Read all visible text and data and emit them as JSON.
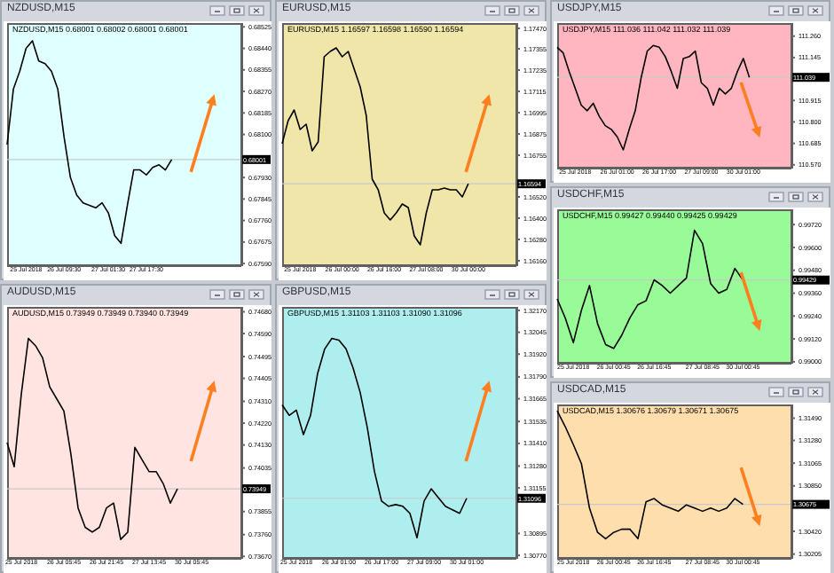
{
  "chart_data": [
    {
      "type": "line",
      "title": "NZDUSD,M15",
      "subtitle": "NZDUSD,M15 0.68001 0.68002 0.68001 0.68001",
      "categories": [
        null,
        null,
        null,
        "25 Jul 2018",
        null,
        null,
        null,
        null,
        null,
        "26 Jul 09:30",
        null,
        null,
        null,
        null,
        null,
        null,
        "27 Jul 01:30",
        null,
        null,
        null,
        null,
        null,
        "27 Jul 17:30",
        null,
        null,
        null,
        null,
        null,
        null,
        null,
        null,
        null,
        null,
        null,
        null,
        null,
        null,
        null
      ],
      "series": [
        {
          "color": "#000000",
          "values": [
            0.6806,
            0.6828,
            0.6835,
            0.6844,
            0.6847,
            0.6839,
            0.6838,
            0.6835,
            0.6828,
            0.6809,
            0.6793,
            0.6786,
            0.6783,
            0.6782,
            0.6781,
            0.6783,
            0.6779,
            0.677,
            0.6767,
            0.6782,
            0.6796,
            0.6796,
            0.6794,
            0.6797,
            0.6798,
            0.6796,
            0.68001,
            null,
            null,
            null,
            null,
            null,
            null,
            null,
            null,
            null,
            null,
            null
          ]
        }
      ],
      "ylim": [
        0.6758,
        0.6854
      ],
      "yticks": [
        0.68525,
        {
          "value": 0.6844,
          "label": "0.68440"
        },
        0.68355,
        {
          "value": 0.6827,
          "label": "0.68270"
        },
        0.68185,
        {
          "value": 0.681,
          "label": "0.68100"
        },
        {
          "value": 0.6793,
          "label": "0.67930"
        },
        0.67845,
        {
          "value": 0.6776,
          "label": "0.67760"
        },
        0.67675,
        {
          "value": 0.6759,
          "label": "0.67590"
        }
      ],
      "ref_lines": [
        {
          "axis": "y",
          "value": 0.68001,
          "label": "0.68001",
          "color": "#c8c8c8"
        }
      ]
    },
    {
      "type": "line",
      "title": "EURUSD,M15",
      "subtitle": "EURUSD,M15 1.16597 1.16598 1.16590 1.16594",
      "categories": [
        null,
        null,
        null,
        "25 Jul 2018",
        null,
        null,
        null,
        null,
        null,
        null,
        "26 Jul 00:00",
        null,
        null,
        null,
        null,
        null,
        null,
        "26 Jul 16:00",
        null,
        null,
        null,
        null,
        null,
        null,
        "27 Jul 08:00",
        null,
        null,
        null,
        null,
        null,
        null,
        "30 Jul 00:00",
        null,
        null,
        null,
        null,
        null,
        null,
        null,
        null
      ],
      "series": [
        {
          "color": "#000000",
          "values": [
            1.1682,
            1.1695,
            1.1701,
            1.169,
            1.1693,
            1.1678,
            1.1683,
            1.1731,
            1.1734,
            1.1736,
            1.1731,
            1.1734,
            1.1724,
            1.1714,
            1.1698,
            1.1662,
            1.1656,
            1.1643,
            1.1639,
            1.1643,
            1.1648,
            1.1646,
            1.163,
            1.1625,
            1.1643,
            1.1656,
            1.1656,
            1.1657,
            1.1656,
            1.1656,
            1.1652,
            1.16594,
            null,
            null,
            null,
            null,
            null,
            null,
            null,
            null
          ]
        }
      ],
      "ylim": [
        1.1613,
        1.175
      ],
      "yticks": [
        {
          "value": 1.1747,
          "label": "1.17470"
        },
        1.17355,
        1.17235,
        1.17115,
        1.16995,
        1.16875,
        1.16755,
        {
          "value": 1.1652,
          "label": "1.16520"
        },
        {
          "value": 1.164,
          "label": "1.16400"
        },
        {
          "value": 1.1628,
          "label": "1.16280"
        },
        {
          "value": 1.1616,
          "label": "1.16160"
        }
      ],
      "ref_lines": [
        {
          "axis": "y",
          "value": 1.16594,
          "label": "1.16594",
          "color": "#c8c8c8"
        }
      ]
    },
    {
      "type": "line",
      "title": "USDJPY,M15",
      "subtitle": "USDJPY,M15 111.036 111.042 111.032 111.039",
      "categories": [
        null,
        null,
        null,
        "25 Jul 2018",
        null,
        null,
        null,
        null,
        null,
        null,
        "26 Jul 01:00",
        null,
        null,
        null,
        null,
        null,
        null,
        "26 Jul 17:00",
        null,
        null,
        null,
        null,
        null,
        null,
        "27 Jul 09:00",
        null,
        null,
        null,
        null,
        null,
        null,
        "30 Jul 01:00",
        null,
        null,
        null,
        null,
        null,
        null,
        null,
        null
      ],
      "series": [
        {
          "color": "#000000",
          "values": [
            111.2,
            111.17,
            111.07,
            110.98,
            110.89,
            110.86,
            110.9,
            110.83,
            110.78,
            110.76,
            110.72,
            110.65,
            110.76,
            110.86,
            111.04,
            111.18,
            111.21,
            111.2,
            111.15,
            111.07,
            110.98,
            111.14,
            111.15,
            111.18,
            111.01,
            110.98,
            110.89,
            110.98,
            110.95,
            110.98,
            111.07,
            111.14,
            111.039,
            null,
            null,
            null,
            null,
            null,
            null,
            null
          ]
        }
      ],
      "ylim": [
        110.55,
        111.33
      ],
      "yticks": [
        {
          "value": 111.26,
          "label": "111.260"
        },
        111.145,
        110.915,
        {
          "value": 110.8,
          "label": "110.800"
        },
        110.685,
        {
          "value": 110.57,
          "label": "110.570"
        }
      ],
      "ref_lines": [
        {
          "axis": "y",
          "value": 111.039,
          "label": "111.039",
          "color": "#c8c8c8"
        }
      ]
    },
    {
      "type": "line",
      "title": "AUDUSD,M15",
      "subtitle": "AUDUSD,M15 0.73949 0.73949 0.73940 0.73949",
      "categories": [
        null,
        null,
        "25 Jul 2018",
        null,
        null,
        null,
        null,
        null,
        "26 Jul 05:45",
        null,
        null,
        null,
        null,
        null,
        "26 Jul 21:45",
        null,
        null,
        null,
        null,
        null,
        "27 Jul 13:45",
        null,
        null,
        null,
        null,
        null,
        "30 Jul 05:45",
        null,
        null,
        null,
        null,
        null,
        null,
        null
      ],
      "series": [
        {
          "color": "#000000",
          "values": [
            0.7414,
            0.7404,
            0.7434,
            0.7457,
            0.7454,
            0.7449,
            0.7437,
            0.7432,
            0.7427,
            0.7409,
            0.7387,
            0.7379,
            0.7377,
            0.7379,
            0.7387,
            0.7389,
            0.7374,
            0.7377,
            0.7412,
            0.7407,
            0.7402,
            0.7402,
            0.7397,
            0.7389,
            0.73949,
            null,
            null,
            null,
            null,
            null,
            null,
            null,
            null,
            null
          ]
        }
      ],
      "ylim": [
        0.7366,
        0.747
      ],
      "yticks": [
        {
          "value": 0.7468,
          "label": "0.74680"
        },
        {
          "value": 0.7459,
          "label": "0.74590"
        },
        0.74495,
        0.74405,
        {
          "value": 0.7431,
          "label": "0.74310"
        },
        {
          "value": 0.7422,
          "label": "0.74220"
        },
        {
          "value": 0.7413,
          "label": "0.74130"
        },
        0.74035,
        0.73855,
        {
          "value": 0.7376,
          "label": "0.73760"
        },
        {
          "value": 0.7367,
          "label": "0.73670"
        }
      ],
      "ref_lines": [
        {
          "axis": "y",
          "value": 0.73949,
          "label": "0.73949",
          "color": "#c8c8c8"
        }
      ]
    },
    {
      "type": "line",
      "title": "GBPUSD,M15",
      "subtitle": "GBPUSD,M15 1.31103 1.31103 1.31090 1.31096",
      "categories": [
        null,
        null,
        "25 Jul 2018",
        null,
        null,
        null,
        null,
        null,
        "26 Jul 01:00",
        null,
        null,
        null,
        null,
        null,
        "26 Jul 17:00",
        null,
        null,
        null,
        null,
        null,
        "27 Jul 09:00",
        null,
        null,
        null,
        null,
        null,
        "30 Jul 01:00",
        null,
        null,
        null,
        null,
        null,
        null,
        null
      ],
      "series": [
        {
          "color": "#000000",
          "values": [
            1.3163,
            1.3157,
            1.316,
            1.3146,
            1.3157,
            1.3181,
            1.3195,
            1.3201,
            1.32,
            1.3195,
            1.3184,
            1.317,
            1.315,
            1.3125,
            1.3108,
            1.3105,
            1.3106,
            1.3105,
            1.3101,
            1.3087,
            1.3108,
            1.3115,
            1.311,
            1.3105,
            1.3103,
            1.3101,
            1.31096,
            null,
            null,
            null,
            null,
            null,
            null,
            null
          ]
        }
      ],
      "ylim": [
        1.3075,
        1.3219
      ],
      "yticks": [
        {
          "value": 1.3217,
          "label": "1.32170"
        },
        1.32045,
        {
          "value": 1.3192,
          "label": "1.31920"
        },
        {
          "value": 1.3179,
          "label": "1.31790"
        },
        1.31665,
        1.31535,
        {
          "value": 1.3141,
          "label": "1.31410"
        },
        {
          "value": 1.3128,
          "label": "1.31280"
        },
        1.31155,
        1.30895,
        {
          "value": 1.3077,
          "label": "1.30770"
        }
      ],
      "ref_lines": [
        {
          "axis": "y",
          "value": 1.31096,
          "label": "1.31096",
          "color": "#c8c8c8"
        }
      ]
    },
    {
      "type": "line",
      "title": "USDCHF,M15",
      "subtitle": "USDCHF,M15 0.99427 0.99440 0.99425 0.99429",
      "categories": [
        null,
        null,
        "25 Jul 2018",
        null,
        null,
        null,
        null,
        "26 Jul 00:45",
        null,
        null,
        null,
        null,
        "26 Jul 16:45",
        null,
        null,
        null,
        null,
        null,
        "27 Jul 08:45",
        null,
        null,
        null,
        null,
        "30 Jul 00:45",
        null,
        null,
        null,
        null,
        null,
        null
      ],
      "series": [
        {
          "color": "#000000",
          "values": [
            0.9933,
            0.9923,
            0.991,
            0.9927,
            0.994,
            0.992,
            0.9909,
            0.9907,
            0.9914,
            0.9923,
            0.993,
            0.9932,
            0.9943,
            0.994,
            0.9936,
            0.994,
            0.9944,
            0.9969,
            0.9962,
            0.9941,
            0.9936,
            0.9938,
            0.9949,
            0.99429,
            null,
            null,
            null,
            null,
            null,
            null
          ]
        }
      ],
      "ylim": [
        0.9899,
        0.998
      ],
      "yticks": [
        {
          "value": 0.9972,
          "label": "0.99720"
        },
        {
          "value": 0.996,
          "label": "0.99600"
        },
        {
          "value": 0.9948,
          "label": "0.99480"
        },
        {
          "value": 0.9936,
          "label": "0.99360"
        },
        {
          "value": 0.9924,
          "label": "0.99240"
        },
        {
          "value": 0.9912,
          "label": "0.99120"
        },
        {
          "value": 0.99,
          "label": "0.99000"
        }
      ],
      "ref_lines": [
        {
          "axis": "y",
          "value": 0.99429,
          "label": "0.99429",
          "color": "#c8c8c8"
        }
      ]
    },
    {
      "type": "line",
      "title": "USDCAD,M15",
      "subtitle": "USDCAD,M15 1.30676 1.30679 1.30671 1.30675",
      "categories": [
        null,
        null,
        "25 Jul 2018",
        null,
        null,
        null,
        null,
        "26 Jul 00:45",
        null,
        null,
        null,
        null,
        "26 Jul 16:45",
        null,
        null,
        null,
        null,
        null,
        "27 Jul 08:45",
        null,
        null,
        null,
        null,
        "30 Jul 00:45",
        null,
        null,
        null,
        null,
        null,
        null
      ],
      "series": [
        {
          "color": "#000000",
          "values": [
            1.3156,
            1.3141,
            1.3124,
            1.3106,
            1.3064,
            1.3041,
            1.3035,
            1.3041,
            1.3044,
            1.3044,
            1.3035,
            1.307,
            1.3073,
            1.3067,
            1.3064,
            1.3061,
            1.3067,
            1.3064,
            1.3061,
            1.3064,
            1.3061,
            1.3064,
            1.3073,
            1.30675,
            null,
            null,
            null,
            null,
            null,
            null
          ]
        }
      ],
      "ylim": [
        1.3016,
        1.3162
      ],
      "yticks": [
        {
          "value": 1.3149,
          "label": "1.31490"
        },
        {
          "value": 1.3128,
          "label": "1.31280"
        },
        1.31065,
        {
          "value": 1.3085,
          "label": "1.30850"
        },
        {
          "value": 1.3042,
          "label": "1.30420"
        },
        1.30205
      ],
      "ref_lines": [
        {
          "axis": "y",
          "value": 1.30675,
          "label": "1.30675",
          "color": "#c8c8c8"
        }
      ]
    }
  ]
}
